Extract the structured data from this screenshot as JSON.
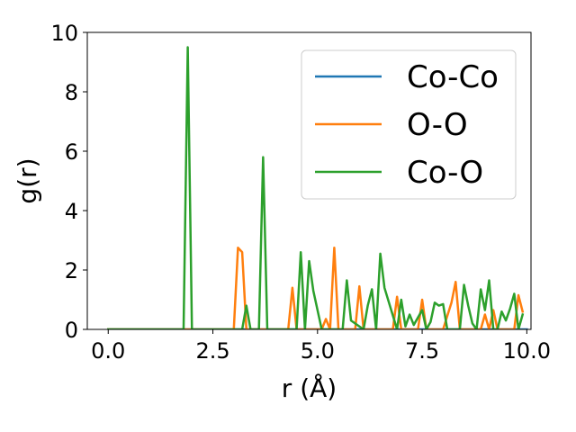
{
  "chart_data": {
    "type": "line",
    "title": "",
    "xlabel": "r (Å)",
    "ylabel": "g(r)",
    "xlim": [
      -0.5,
      10.1
    ],
    "ylim": [
      0,
      10
    ],
    "xticks": [
      0.0,
      2.5,
      5.0,
      7.5,
      10.0
    ],
    "xtick_labels": [
      "0.0",
      "2.5",
      "5.0",
      "7.5",
      "10.0"
    ],
    "yticks": [
      0,
      2,
      4,
      6,
      8,
      10
    ],
    "ytick_labels": [
      "0",
      "2",
      "4",
      "6",
      "8",
      "10"
    ],
    "grid": false,
    "legend_position": "top-right",
    "series": [
      {
        "name": "Co-Co",
        "color": "#1f77b4",
        "x": [
          0.0,
          10.0
        ],
        "y": [
          0,
          0
        ]
      },
      {
        "name": "O-O",
        "color": "#ff7f0e",
        "x": [
          0.0,
          3.0,
          3.1,
          3.2,
          3.3,
          4.3,
          4.4,
          4.5,
          5.1,
          5.2,
          5.3,
          5.4,
          5.5,
          5.9,
          6.0,
          6.1,
          6.2,
          6.8,
          6.9,
          7.0,
          7.4,
          7.5,
          7.6,
          8.0,
          8.1,
          8.2,
          8.3,
          8.4,
          8.5,
          8.9,
          9.0,
          9.1,
          9.2,
          9.3,
          9.7,
          9.8,
          9.9
        ],
        "y": [
          0,
          0,
          2.75,
          2.6,
          0,
          0,
          1.4,
          0,
          0,
          0.35,
          0,
          2.75,
          0,
          0,
          1.45,
          0,
          0,
          0,
          1.1,
          0,
          0,
          1.0,
          0,
          0,
          0.45,
          0.9,
          1.6,
          0,
          0,
          0,
          0.5,
          0,
          0.65,
          0,
          0,
          1.15,
          0.6
        ]
      },
      {
        "name": "Co-O",
        "color": "#2ca02c",
        "x": [
          0.0,
          1.8,
          1.9,
          2.0,
          3.1,
          3.2,
          3.3,
          3.4,
          3.6,
          3.7,
          3.8,
          4.5,
          4.6,
          4.7,
          4.8,
          4.9,
          5.1,
          5.6,
          5.7,
          5.8,
          6.1,
          6.2,
          6.3,
          6.4,
          6.5,
          6.6,
          6.9,
          7.0,
          7.1,
          7.2,
          7.3,
          7.5,
          7.6,
          7.7,
          7.8,
          7.9,
          8.0,
          8.1,
          8.3,
          8.4,
          8.5,
          8.6,
          8.7,
          8.8,
          8.9,
          9.0,
          9.1,
          9.2,
          9.3,
          9.4,
          9.5,
          9.6,
          9.7,
          9.8,
          9.9
        ],
        "y": [
          0,
          0,
          9.5,
          0,
          0,
          0,
          0.8,
          0,
          0,
          5.8,
          0,
          0,
          2.6,
          0,
          2.3,
          1.3,
          0,
          0,
          1.65,
          0.3,
          0,
          0.8,
          1.35,
          0,
          2.55,
          1.4,
          0,
          1.0,
          0.1,
          0.5,
          0.15,
          0.65,
          0,
          0.25,
          0.9,
          0.8,
          0.85,
          0,
          0,
          0,
          1.5,
          0.8,
          0.2,
          0,
          1.35,
          0.65,
          1.65,
          0,
          0,
          0.6,
          0.3,
          0.7,
          1.2,
          0,
          0.5
        ]
      }
    ]
  }
}
